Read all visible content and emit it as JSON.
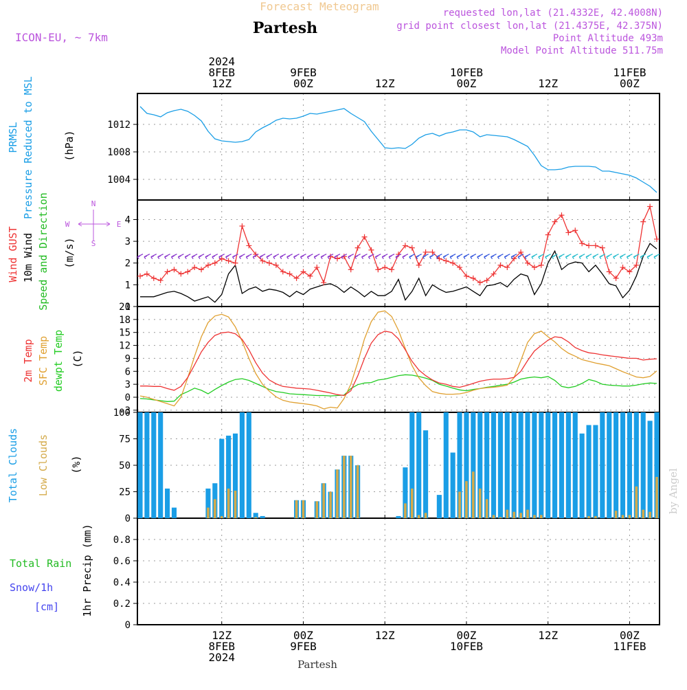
{
  "header": {
    "super_title": "Forecast Meteogram",
    "location": "Partesh",
    "model": "ICON-EU, ~ 7km",
    "requested": "requested lon,lat (21.4332E, 42.4008N)",
    "grid_point": "grid point closest lon,lat (21.4375E, 42.375N)",
    "point_altitude": "Point Altitude 493m",
    "model_altitude": "Model Point Altitude 511.75m",
    "watermark": "by Angel",
    "footer_location": "Partesh"
  },
  "colors": {
    "pressure": "#1a9ee6",
    "gust": "#ee3333",
    "wind10m": "#000000",
    "wind_dir_label": "#22bb22",
    "temp2m": "#ee3333",
    "sfc_temp": "#e0a030",
    "dewpt": "#22cc22",
    "total_clouds": "#1a9ee6",
    "low_clouds": "#d4aa4a",
    "rain": "#22bb22",
    "snow": "#4444ee",
    "header_purple": "#bb55dd",
    "super_title": "#f0c890"
  },
  "time_axis": {
    "top_labels": [
      {
        "lines": [
          "2024",
          "8FEB",
          "12Z"
        ]
      },
      {
        "lines": [
          "9FEB",
          "00Z"
        ]
      },
      {
        "lines": [
          "12Z"
        ]
      },
      {
        "lines": [
          "10FEB",
          "00Z"
        ]
      },
      {
        "lines": [
          "12Z"
        ]
      },
      {
        "lines": [
          "11FEB",
          "00Z"
        ]
      }
    ],
    "bottom_labels": [
      {
        "lines": [
          "12Z",
          "8FEB",
          "2024"
        ]
      },
      {
        "lines": [
          "00Z",
          "9FEB"
        ]
      },
      {
        "lines": [
          "12Z"
        ]
      },
      {
        "lines": [
          "00Z",
          "10FEB"
        ]
      },
      {
        "lines": [
          "12Z"
        ]
      },
      {
        "lines": [
          "00Z",
          "11FEB"
        ]
      }
    ],
    "tick_hours": [
      12,
      24,
      36,
      48,
      60,
      72
    ]
  },
  "chart_data": [
    {
      "type": "line",
      "id": "pressure",
      "ylabel_lines": [
        "PRMSL",
        "Pressure Reduced to MSL"
      ],
      "unit": "(hPa)",
      "ylim": [
        1001,
        1016.5
      ],
      "yticks": [
        1004,
        1008,
        1012
      ],
      "x_hours": [
        0,
        1,
        2,
        3,
        4,
        5,
        6,
        7,
        8,
        9,
        10,
        11,
        12,
        13,
        14,
        15,
        16,
        17,
        18,
        19,
        20,
        21,
        22,
        23,
        24,
        25,
        26,
        27,
        28,
        29,
        30,
        31,
        32,
        33,
        34,
        35,
        36,
        37,
        38,
        39,
        40,
        41,
        42,
        43,
        44,
        45,
        46,
        47,
        48,
        49,
        50,
        51,
        52,
        53,
        54,
        55,
        56,
        57,
        58,
        59,
        60,
        61,
        62,
        63,
        64,
        65,
        66,
        67,
        68,
        69,
        70,
        71,
        72,
        73,
        74,
        75,
        76
      ],
      "series": [
        {
          "values": [
            1014.6,
            1013.6,
            1013.4,
            1013.1,
            1013.7,
            1014.0,
            1014.2,
            1013.9,
            1013.3,
            1012.5,
            1011.0,
            1009.9,
            1009.6,
            1009.5,
            1009.4,
            1009.5,
            1009.8,
            1010.9,
            1011.5,
            1012.0,
            1012.6,
            1012.9,
            1012.8,
            1012.9,
            1013.2,
            1013.6,
            1013.5,
            1013.7,
            1013.9,
            1014.1,
            1014.3,
            1013.6,
            1013.0,
            1012.4,
            1011.0,
            1009.8,
            1008.6,
            1008.5,
            1008.6,
            1008.5,
            1009.1,
            1010.0,
            1010.5,
            1010.7,
            1010.3,
            1010.7,
            1010.9,
            1011.2,
            1011.2,
            1010.9,
            1010.2,
            1010.5,
            1010.4,
            1010.3,
            1010.2,
            1009.8,
            1009.3,
            1008.8,
            1007.5,
            1006.0,
            1005.4,
            1005.4,
            1005.5,
            1005.8,
            1005.9,
            1005.9,
            1005.9,
            1005.8,
            1005.2,
            1005.2,
            1005.0,
            1004.8,
            1004.6,
            1004.2,
            1003.6,
            1003.0,
            1002.1
          ]
        }
      ]
    },
    {
      "type": "line",
      "id": "wind",
      "ylabel_lines": [
        "Wind GUST",
        "10m Wind",
        "Speed and Direction"
      ],
      "unit": "(m/s)",
      "compass": {
        "n": "N",
        "s": "S",
        "w": "W",
        "e": "E"
      },
      "ylim": [
        0,
        4.9
      ],
      "yticks": [
        0,
        1,
        2,
        3,
        4
      ],
      "x_hours": [
        0,
        1,
        2,
        3,
        4,
        5,
        6,
        7,
        8,
        9,
        10,
        11,
        12,
        13,
        14,
        15,
        16,
        17,
        18,
        19,
        20,
        21,
        22,
        23,
        24,
        25,
        26,
        27,
        28,
        29,
        30,
        31,
        32,
        33,
        34,
        35,
        36,
        37,
        38,
        39,
        40,
        41,
        42,
        43,
        44,
        45,
        46,
        47,
        48,
        49,
        50,
        51,
        52,
        53,
        54,
        55,
        56,
        57,
        58,
        59,
        60,
        61,
        62,
        63,
        64,
        65,
        66,
        67,
        68,
        69,
        70,
        71,
        72,
        73,
        74,
        75,
        76
      ],
      "series": [
        {
          "name": "Wind GUST",
          "values": [
            1.4,
            1.5,
            1.3,
            1.2,
            1.6,
            1.7,
            1.5,
            1.6,
            1.8,
            1.7,
            1.9,
            2.0,
            2.2,
            2.1,
            2.0,
            3.7,
            2.8,
            2.4,
            2.1,
            2.0,
            1.9,
            1.6,
            1.5,
            1.3,
            1.6,
            1.4,
            1.8,
            1.1,
            2.3,
            2.2,
            2.3,
            1.7,
            2.7,
            3.2,
            2.6,
            1.7,
            1.8,
            1.7,
            2.4,
            2.8,
            2.7,
            1.9,
            2.5,
            2.5,
            2.2,
            2.1,
            2.0,
            1.8,
            1.4,
            1.3,
            1.1,
            1.2,
            1.5,
            1.9,
            1.8,
            2.2,
            2.5,
            2.0,
            1.8,
            1.9,
            3.3,
            3.9,
            4.2,
            3.4,
            3.5,
            2.9,
            2.8,
            2.8,
            2.7,
            1.6,
            1.3,
            1.8,
            1.6,
            1.9,
            3.9,
            4.6,
            3.1
          ]
        },
        {
          "name": "10m Wind",
          "values": [
            0.45,
            0.45,
            0.45,
            0.55,
            0.65,
            0.7,
            0.6,
            0.45,
            0.25,
            0.35,
            0.45,
            0.2,
            0.55,
            1.5,
            1.9,
            0.6,
            0.8,
            0.9,
            0.7,
            0.8,
            0.75,
            0.65,
            0.45,
            0.7,
            0.55,
            0.8,
            0.9,
            1.0,
            1.05,
            0.9,
            0.65,
            0.9,
            0.7,
            0.45,
            0.7,
            0.5,
            0.5,
            0.7,
            1.25,
            0.3,
            0.7,
            1.3,
            0.5,
            1.0,
            0.8,
            0.65,
            0.7,
            0.8,
            0.9,
            0.7,
            0.5,
            0.95,
            1.0,
            1.1,
            0.9,
            1.25,
            1.5,
            1.4,
            0.55,
            1.05,
            2.0,
            2.55,
            1.7,
            1.95,
            2.05,
            2.0,
            1.6,
            1.9,
            1.5,
            1.05,
            0.95,
            0.4,
            0.75,
            1.4,
            2.3,
            2.9,
            2.65
          ]
        }
      ],
      "direction_arrows_y_m_s": 2.35
    },
    {
      "type": "line",
      "id": "temperature",
      "ylabel_lines": [
        "2m Temp",
        "SFC Temp",
        "dewpt Temp"
      ],
      "unit": "(C)",
      "ylim": [
        -3.5,
        21
      ],
      "yticks": [
        -3,
        0,
        3,
        6,
        9,
        12,
        15,
        18,
        21
      ],
      "x_hours": [
        0,
        1,
        2,
        3,
        4,
        5,
        6,
        7,
        8,
        9,
        10,
        11,
        12,
        13,
        14,
        15,
        16,
        17,
        18,
        19,
        20,
        21,
        22,
        23,
        24,
        25,
        26,
        27,
        28,
        29,
        30,
        31,
        32,
        33,
        34,
        35,
        36,
        37,
        38,
        39,
        40,
        41,
        42,
        43,
        44,
        45,
        46,
        47,
        48,
        49,
        50,
        51,
        52,
        53,
        54,
        55,
        56,
        57,
        58,
        59,
        60,
        61,
        62,
        63,
        64,
        65,
        66,
        67,
        68,
        69,
        70,
        71,
        72,
        73,
        74,
        75,
        76
      ],
      "series": [
        {
          "name": "2m Temp",
          "values": [
            2.6,
            2.6,
            2.5,
            2.5,
            2.0,
            1.6,
            2.5,
            4.6,
            7.5,
            10.5,
            12.7,
            14.3,
            14.9,
            15.1,
            14.7,
            13.4,
            11.0,
            8.0,
            5.6,
            4.0,
            3.1,
            2.5,
            2.3,
            2.1,
            2.0,
            1.9,
            1.6,
            1.3,
            1.0,
            0.6,
            0.4,
            1.5,
            4.9,
            9.0,
            12.5,
            14.5,
            15.3,
            15.0,
            13.5,
            11.0,
            8.3,
            6.3,
            5.0,
            4.0,
            3.3,
            3.0,
            2.5,
            2.3,
            2.7,
            3.2,
            3.7,
            4.0,
            4.2,
            4.2,
            4.3,
            4.6,
            6.0,
            8.5,
            10.7,
            12.0,
            13.2,
            14.0,
            13.8,
            12.8,
            11.5,
            10.8,
            10.3,
            10.1,
            9.8,
            9.6,
            9.4,
            9.2,
            9.0,
            9.0,
            8.6,
            8.8,
            8.9
          ]
        },
        {
          "name": "SFC Temp",
          "values": [
            0.3,
            0.0,
            -0.5,
            -1.0,
            -1.5,
            -2.0,
            0.0,
            4.5,
            9.5,
            14.0,
            17.3,
            18.8,
            19.2,
            18.6,
            16.3,
            13.0,
            9.0,
            5.5,
            3.0,
            1.4,
            0.1,
            -0.7,
            -1.1,
            -1.3,
            -1.5,
            -1.7,
            -2.0,
            -2.7,
            -2.3,
            -2.5,
            -0.3,
            3.0,
            8.0,
            13.5,
            17.5,
            19.7,
            20.0,
            18.7,
            15.5,
            11.3,
            7.3,
            4.5,
            2.7,
            1.3,
            0.9,
            0.7,
            0.7,
            0.8,
            1.1,
            1.6,
            2.0,
            2.2,
            2.3,
            2.5,
            2.8,
            4.5,
            8.5,
            12.7,
            14.7,
            15.3,
            14.0,
            12.8,
            11.3,
            10.2,
            9.5,
            8.7,
            8.3,
            7.9,
            7.6,
            7.3,
            6.6,
            5.9,
            5.3,
            4.7,
            4.5,
            4.8,
            6.1
          ]
        },
        {
          "name": "dewpt Temp",
          "values": [
            -0.3,
            -0.4,
            -0.6,
            -0.8,
            -1.0,
            -0.9,
            0.6,
            1.3,
            2.1,
            1.6,
            0.8,
            1.8,
            2.7,
            3.5,
            4.1,
            4.3,
            3.9,
            3.2,
            2.5,
            1.8,
            1.3,
            1.1,
            0.8,
            0.7,
            0.6,
            0.5,
            0.4,
            0.4,
            0.3,
            0.4,
            0.5,
            2.0,
            2.9,
            3.3,
            3.4,
            4.0,
            4.2,
            4.6,
            5.0,
            5.2,
            5.1,
            4.8,
            4.4,
            3.9,
            3.0,
            2.6,
            2.1,
            1.7,
            1.5,
            1.8,
            2.0,
            2.3,
            2.5,
            2.8,
            3.0,
            3.5,
            4.2,
            4.5,
            4.7,
            4.5,
            4.8,
            3.9,
            2.5,
            2.2,
            2.5,
            3.2,
            4.1,
            3.7,
            3.0,
            2.8,
            2.7,
            2.6,
            2.6,
            2.8,
            3.1,
            3.3,
            3.2
          ]
        }
      ]
    },
    {
      "type": "bar",
      "id": "clouds",
      "ylabel_lines": [
        "Total Clouds",
        "Low Clouds"
      ],
      "unit": "(%)",
      "ylim": [
        0,
        100
      ],
      "yticks": [
        0,
        25,
        50,
        75,
        100
      ],
      "x_hours": [
        0,
        1,
        2,
        3,
        4,
        5,
        6,
        7,
        8,
        9,
        10,
        11,
        12,
        13,
        14,
        15,
        16,
        17,
        18,
        19,
        20,
        21,
        22,
        23,
        24,
        25,
        26,
        27,
        28,
        29,
        30,
        31,
        32,
        33,
        34,
        35,
        36,
        37,
        38,
        39,
        40,
        41,
        42,
        43,
        44,
        45,
        46,
        47,
        48,
        49,
        50,
        51,
        52,
        53,
        54,
        55,
        56,
        57,
        58,
        59,
        60,
        61,
        62,
        63,
        64,
        65,
        66,
        67,
        68,
        69,
        70,
        71,
        72,
        73,
        74,
        75,
        76
      ],
      "series": [
        {
          "name": "Total Clouds",
          "values": [
            100,
            100,
            100,
            100,
            28,
            10,
            0,
            0,
            0,
            0,
            28,
            33,
            75,
            78,
            80,
            100,
            100,
            5,
            2,
            0,
            0,
            0,
            0,
            17,
            17,
            0,
            16,
            33,
            25,
            46,
            59,
            59,
            50,
            0,
            0,
            0,
            0,
            0,
            2,
            48,
            100,
            100,
            83,
            0,
            22,
            100,
            62,
            100,
            100,
            100,
            100,
            100,
            100,
            100,
            100,
            100,
            100,
            100,
            100,
            100,
            100,
            100,
            100,
            100,
            100,
            80,
            88,
            88,
            100,
            100,
            100,
            100,
            100,
            100,
            100,
            92,
            100
          ]
        },
        {
          "name": "Low Clouds",
          "values": [
            0,
            0,
            0,
            0,
            0,
            0,
            0,
            0,
            0,
            0,
            10,
            18,
            2,
            28,
            26,
            0,
            0,
            1,
            0,
            0,
            0,
            0,
            0,
            17,
            17,
            0,
            16,
            33,
            25,
            46,
            59,
            59,
            50,
            0,
            0,
            0,
            0,
            0,
            0,
            14,
            28,
            3,
            5,
            0,
            0,
            0,
            0,
            25,
            35,
            44,
            28,
            18,
            3,
            1,
            8,
            6,
            5,
            8,
            3,
            3,
            0,
            0,
            0,
            0,
            0,
            0,
            2,
            2,
            0,
            0,
            7,
            3,
            3,
            30,
            8,
            6,
            39
          ]
        }
      ]
    },
    {
      "type": "bar",
      "id": "precip",
      "ylabel_lines": [
        "1hr Precip (mm)"
      ],
      "legend_lines": [
        "Total  Rain",
        "Snow/1h",
        "[cm]"
      ],
      "ylim": [
        0,
        1.0
      ],
      "yticks": [
        0,
        0.2,
        0.4,
        0.6,
        0.8
      ],
      "ytick_labels": [
        "0",
        "0.2",
        "0.4",
        "0.6",
        "0.8"
      ],
      "series": [
        {
          "name": "Total Rain",
          "values": []
        },
        {
          "name": "Snow/1h",
          "values": []
        }
      ]
    }
  ]
}
